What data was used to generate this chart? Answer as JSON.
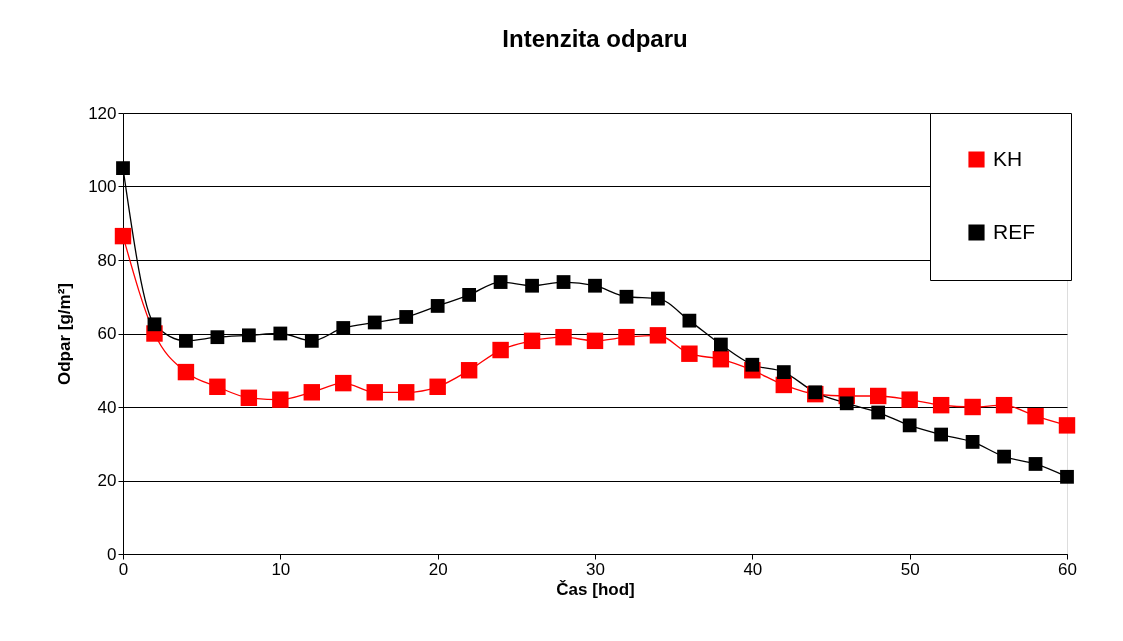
{
  "chart_data": {
    "type": "line",
    "title": "Intenzita odparu",
    "xlabel": "Čas [hod]",
    "ylabel": "Odpar [g/m²]",
    "x": [
      0,
      2,
      4,
      6,
      8,
      10,
      12,
      14,
      16,
      18,
      20,
      22,
      24,
      26,
      28,
      30,
      32,
      34,
      36,
      38,
      40,
      42,
      44,
      46,
      48,
      50,
      52,
      54,
      56,
      58,
      60
    ],
    "series": [
      {
        "name": "KH",
        "color": "#ff0000",
        "values": [
          86.5,
          60,
          49.5,
          45.5,
          42.5,
          42,
          44,
          46.5,
          44,
          44,
          45.5,
          50,
          55.5,
          58,
          59,
          58,
          59,
          59.5,
          54.5,
          53,
          50,
          46,
          43.5,
          43,
          43,
          42,
          40.5,
          40,
          40.5,
          37.5,
          35
        ]
      },
      {
        "name": "REF",
        "color": "#000000",
        "values": [
          105,
          62.5,
          58,
          59,
          59.5,
          60,
          58,
          61.5,
          63,
          64.5,
          67.5,
          70.5,
          74,
          73,
          74,
          73,
          70,
          69.5,
          63.5,
          57,
          51.5,
          49.5,
          44,
          41,
          38.5,
          35,
          32.5,
          30.5,
          26.5,
          24.5,
          21
        ]
      }
    ],
    "xlim": [
      0,
      60
    ],
    "xticks": [
      0,
      10,
      20,
      30,
      40,
      50,
      60
    ],
    "ylim": [
      0,
      120
    ],
    "yticks": [
      0,
      20,
      40,
      60,
      80,
      100,
      120
    ],
    "grid": "y",
    "legend": "top right",
    "marker": "square",
    "line_style": "solid"
  }
}
